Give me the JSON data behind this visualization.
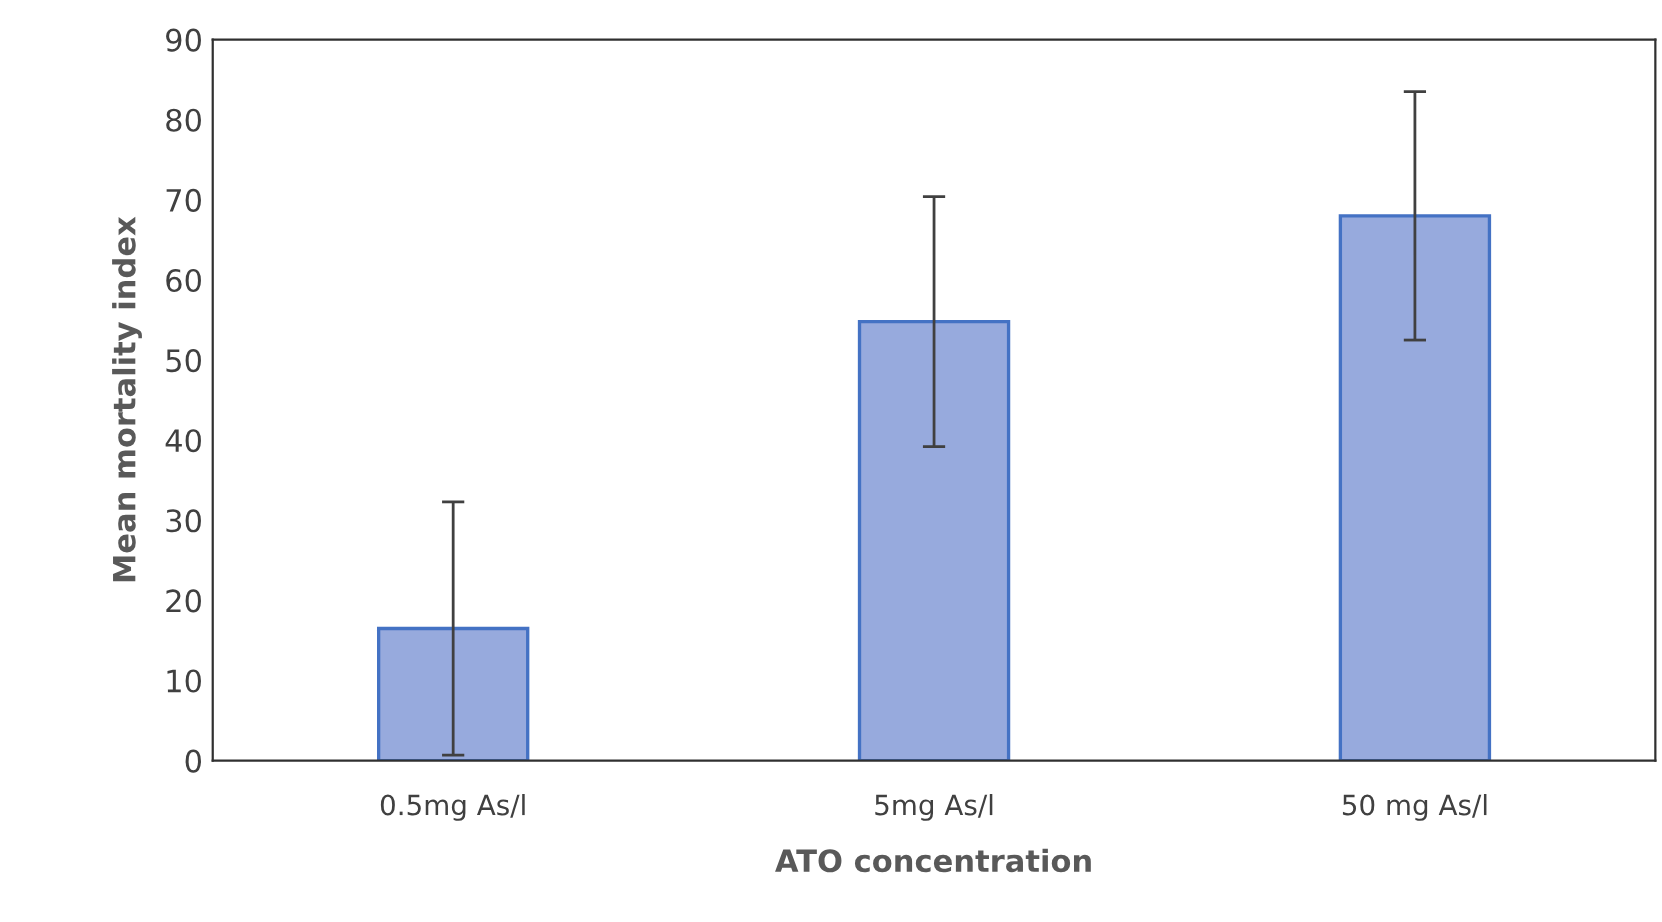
{
  "chart_data": {
    "type": "bar",
    "xlabel": "ATO concentration",
    "ylabel": "Mean mortality index",
    "categories": [
      "0.5mg As/l",
      "5mg As/l",
      "50 mg As/l"
    ],
    "values": [
      16.5,
      54.8,
      68
    ],
    "errors": [
      15.8,
      15.6,
      15.5
    ],
    "color": "#97aadd",
    "ylim": [
      0,
      90
    ],
    "yticks": [
      0,
      10,
      20,
      30,
      40,
      50,
      60,
      70,
      80,
      90
    ],
    "grid": false
  }
}
